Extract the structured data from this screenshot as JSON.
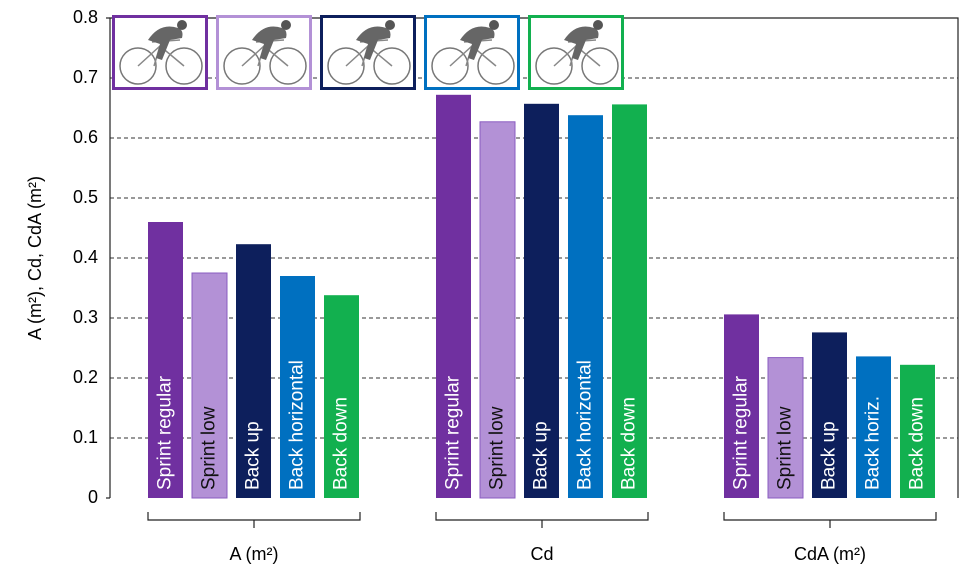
{
  "chart_data": {
    "type": "bar",
    "y_label": "A (m²), Cd, CdA (m²)",
    "categories": [
      "A (m²)",
      "Cd",
      "CdA (m²)"
    ],
    "ylim": [
      0,
      0.8
    ],
    "yticks": [
      0,
      0.1,
      0.2,
      0.3,
      0.4,
      0.5,
      0.6,
      0.7,
      0.8
    ],
    "grid": true,
    "series": [
      {
        "name": "Sprint regular",
        "color": "#7030a0",
        "values": [
          0.46,
          0.672,
          0.306
        ],
        "bar_labels": [
          "Sprint regular",
          "Sprint regular",
          "Sprint regular"
        ]
      },
      {
        "name": "Sprint low",
        "color": "#b391d6",
        "values": [
          0.375,
          0.627,
          0.234
        ],
        "bar_labels": [
          "Sprint low",
          "Sprint low",
          "Sprint low"
        ]
      },
      {
        "name": "Back up",
        "color": "#0d1f5c",
        "values": [
          0.423,
          0.657,
          0.276
        ],
        "bar_labels": [
          "Back up",
          "Back up",
          "Back up"
        ]
      },
      {
        "name": "Back horizontal",
        "color": "#0070c0",
        "values": [
          0.37,
          0.638,
          0.236
        ],
        "bar_labels": [
          "Back horizontal",
          "Back horizontal",
          "Back horiz."
        ]
      },
      {
        "name": "Back down",
        "color": "#12b04f",
        "values": [
          0.338,
          0.656,
          0.222
        ],
        "bar_labels": [
          "Back down",
          "Back down",
          "Back down"
        ]
      }
    ]
  }
}
